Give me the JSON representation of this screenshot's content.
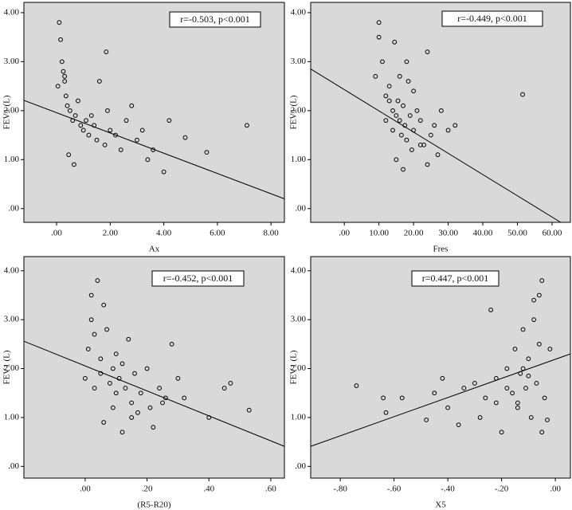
{
  "chart_data": [
    {
      "type": "scatter",
      "x_label": "Ax",
      "y_label": "FEV1 (L)",
      "annotation": "r=-0.503, p<0.001",
      "color": "#000000",
      "background": "#d9d9d9",
      "x": [
        0.1,
        0.15,
        0.2,
        0.3,
        0.35,
        0.4,
        0.5,
        0.6,
        0.7,
        0.8,
        0.9,
        1.0,
        1.1,
        1.2,
        1.3,
        1.4,
        1.5,
        1.6,
        1.8,
        1.9,
        2.0,
        2.2,
        2.4,
        2.6,
        2.8,
        3.0,
        3.2,
        3.4,
        3.6,
        4.0,
        4.2,
        4.8,
        5.6,
        7.1,
        0.05,
        0.25,
        0.45,
        0.65,
        1.85,
        0.3
      ],
      "values": [
        3.8,
        3.45,
        3.0,
        2.6,
        2.3,
        2.1,
        2.0,
        1.8,
        1.9,
        2.2,
        1.7,
        1.6,
        1.8,
        1.5,
        1.9,
        1.7,
        1.4,
        2.6,
        1.3,
        2.0,
        1.6,
        1.5,
        1.2,
        1.8,
        2.1,
        1.4,
        1.6,
        1.0,
        1.2,
        0.75,
        1.8,
        1.45,
        1.15,
        1.7,
        2.5,
        2.8,
        1.1,
        0.9,
        3.2,
        2.7
      ],
      "trend_line": {
        "x": [
          -1.22,
          8.5
        ],
        "y": [
          2.21,
          0.2
        ]
      },
      "xlim": [
        -1.22,
        8.5
      ],
      "ylim": [
        -0.28,
        4.21
      ],
      "xticks": [
        {
          "value": 0,
          "label": ".00"
        },
        {
          "value": 2,
          "label": "2.00"
        },
        {
          "value": 4,
          "label": "4.00"
        },
        {
          "value": 6,
          "label": "6.00"
        },
        {
          "value": 8,
          "label": "8.00"
        }
      ],
      "yticks": [
        {
          "value": 0,
          "label": ".00"
        },
        {
          "value": 1,
          "label": "1.00"
        },
        {
          "value": 2,
          "label": "2.00"
        },
        {
          "value": 3,
          "label": "3.00"
        },
        {
          "value": 4,
          "label": "4.00"
        }
      ]
    },
    {
      "type": "scatter",
      "x_label": "Fres",
      "y_label": "FEV1 (L)",
      "annotation": "r=-0.449, p<0.001",
      "color": "#000000",
      "background": "#d9d9d9",
      "x": [
        9,
        10,
        11,
        12,
        13,
        14,
        14.5,
        15,
        15.5,
        16,
        16.5,
        17,
        17.5,
        18,
        18.5,
        19,
        19.5,
        20,
        21,
        22,
        23,
        24,
        25,
        26,
        27,
        28,
        30,
        32,
        51.5,
        10,
        12,
        15,
        17,
        20,
        22,
        24,
        18,
        16,
        14,
        13
      ],
      "values": [
        2.7,
        3.5,
        3.0,
        2.3,
        2.5,
        2.0,
        3.4,
        1.9,
        2.2,
        1.8,
        1.5,
        2.1,
        1.7,
        1.4,
        2.6,
        1.9,
        1.2,
        1.6,
        2.0,
        1.8,
        1.3,
        3.2,
        1.5,
        1.7,
        1.1,
        2.0,
        1.6,
        1.7,
        2.33,
        3.8,
        1.8,
        1.0,
        0.8,
        2.4,
        1.3,
        0.9,
        3.0,
        2.7,
        1.6,
        2.2
      ],
      "trend_line": {
        "x": [
          -9.7,
          62.5
        ],
        "y": [
          2.85,
          -0.28
        ]
      },
      "xlim": [
        -9.7,
        65.3
      ],
      "ylim": [
        -0.28,
        4.21
      ],
      "xticks": [
        {
          "value": 0,
          "label": ".00"
        },
        {
          "value": 10,
          "label": "10.00"
        },
        {
          "value": 20,
          "label": "20.00"
        },
        {
          "value": 30,
          "label": "30.00"
        },
        {
          "value": 40,
          "label": "40.00"
        },
        {
          "value": 50,
          "label": "50.00"
        },
        {
          "value": 60,
          "label": "60.00"
        }
      ],
      "yticks": [
        {
          "value": 0,
          "label": ".00"
        },
        {
          "value": 1,
          "label": "1.00"
        },
        {
          "value": 2,
          "label": "2.00"
        },
        {
          "value": 3,
          "label": "3.00"
        },
        {
          "value": 4,
          "label": "4.00"
        }
      ]
    },
    {
      "type": "scatter",
      "x_label": "(R5-R20)",
      "y_label": "FEV1 (L)",
      "annotation": "r=-0.452, p<0.001",
      "color": "#000000",
      "background": "#d9d9d9",
      "x": [
        0.01,
        0.02,
        0.02,
        0.03,
        0.04,
        0.05,
        0.05,
        0.06,
        0.07,
        0.08,
        0.09,
        0.1,
        0.1,
        0.11,
        0.12,
        0.13,
        0.14,
        0.15,
        0.16,
        0.17,
        0.18,
        0.2,
        0.21,
        0.22,
        0.24,
        0.26,
        0.28,
        0.3,
        0.32,
        0.4,
        0.45,
        0.47,
        0.53,
        0.0,
        0.03,
        0.06,
        0.09,
        0.12,
        0.15,
        0.25
      ],
      "values": [
        2.4,
        3.5,
        3.0,
        1.6,
        3.8,
        2.2,
        1.9,
        0.9,
        2.8,
        1.7,
        2.0,
        1.5,
        2.3,
        1.8,
        0.7,
        1.6,
        2.6,
        1.3,
        1.9,
        1.1,
        1.5,
        2.0,
        1.2,
        0.8,
        1.6,
        1.4,
        2.5,
        1.8,
        1.4,
        1.0,
        1.6,
        1.7,
        1.15,
        1.8,
        2.7,
        3.3,
        1.2,
        2.1,
        1.0,
        1.3
      ],
      "trend_line": {
        "x": [
          -0.198,
          0.644
        ],
        "y": [
          2.56,
          0.41
        ]
      },
      "xlim": [
        -0.198,
        0.644
      ],
      "ylim": [
        -0.24,
        4.29
      ],
      "xticks": [
        {
          "value": 0,
          "label": ".00"
        },
        {
          "value": 0.2,
          "label": ".20"
        },
        {
          "value": 0.4,
          "label": ".40"
        },
        {
          "value": 0.6,
          "label": ".60"
        }
      ],
      "yticks": [
        {
          "value": 0,
          "label": ".00"
        },
        {
          "value": 1,
          "label": "1.00"
        },
        {
          "value": 2,
          "label": "2.00"
        },
        {
          "value": 3,
          "label": "3.00"
        },
        {
          "value": 4,
          "label": "4.00"
        }
      ]
    },
    {
      "type": "scatter",
      "x_label": "X5",
      "y_label": "FEV1 (L)",
      "annotation": "r=0.447, p<0.001",
      "color": "#000000",
      "background": "#d9d9d9",
      "x": [
        -0.74,
        -0.64,
        -0.63,
        -0.57,
        -0.48,
        -0.45,
        -0.42,
        -0.4,
        -0.36,
        -0.34,
        -0.3,
        -0.28,
        -0.26,
        -0.24,
        -0.22,
        -0.2,
        -0.18,
        -0.16,
        -0.15,
        -0.14,
        -0.13,
        -0.12,
        -0.11,
        -0.1,
        -0.09,
        -0.08,
        -0.07,
        -0.06,
        -0.05,
        -0.04,
        -0.03,
        -0.02,
        -0.08,
        -0.1,
        -0.12,
        -0.14,
        -0.18,
        -0.22,
        -0.06,
        -0.05
      ],
      "values": [
        1.65,
        1.4,
        1.1,
        1.4,
        0.95,
        1.5,
        1.8,
        1.2,
        0.85,
        1.6,
        1.7,
        1.0,
        1.4,
        3.2,
        1.8,
        0.7,
        2.0,
        1.5,
        2.4,
        1.3,
        1.9,
        2.8,
        1.6,
        2.2,
        1.0,
        3.0,
        1.7,
        2.5,
        3.8,
        1.4,
        0.95,
        2.4,
        3.4,
        1.85,
        2.0,
        1.2,
        1.6,
        1.3,
        3.5,
        0.7
      ],
      "trend_line": {
        "x": [
          -0.91,
          0.056
        ],
        "y": [
          0.41,
          2.3
        ]
      },
      "xlim": [
        -0.91,
        0.056
      ],
      "ylim": [
        -0.24,
        4.29
      ],
      "xticks": [
        {
          "value": -0.8,
          "label": "-.80"
        },
        {
          "value": -0.6,
          "label": "-.60"
        },
        {
          "value": -0.4,
          "label": "-.40"
        },
        {
          "value": -0.2,
          "label": "-.20"
        },
        {
          "value": 0,
          "label": ".00"
        }
      ],
      "yticks": [
        {
          "value": 0,
          "label": ".00"
        },
        {
          "value": 1,
          "label": "1.00"
        },
        {
          "value": 2,
          "label": "2.00"
        },
        {
          "value": 3,
          "label": "3.00"
        },
        {
          "value": 4,
          "label": "4.00"
        }
      ]
    }
  ]
}
